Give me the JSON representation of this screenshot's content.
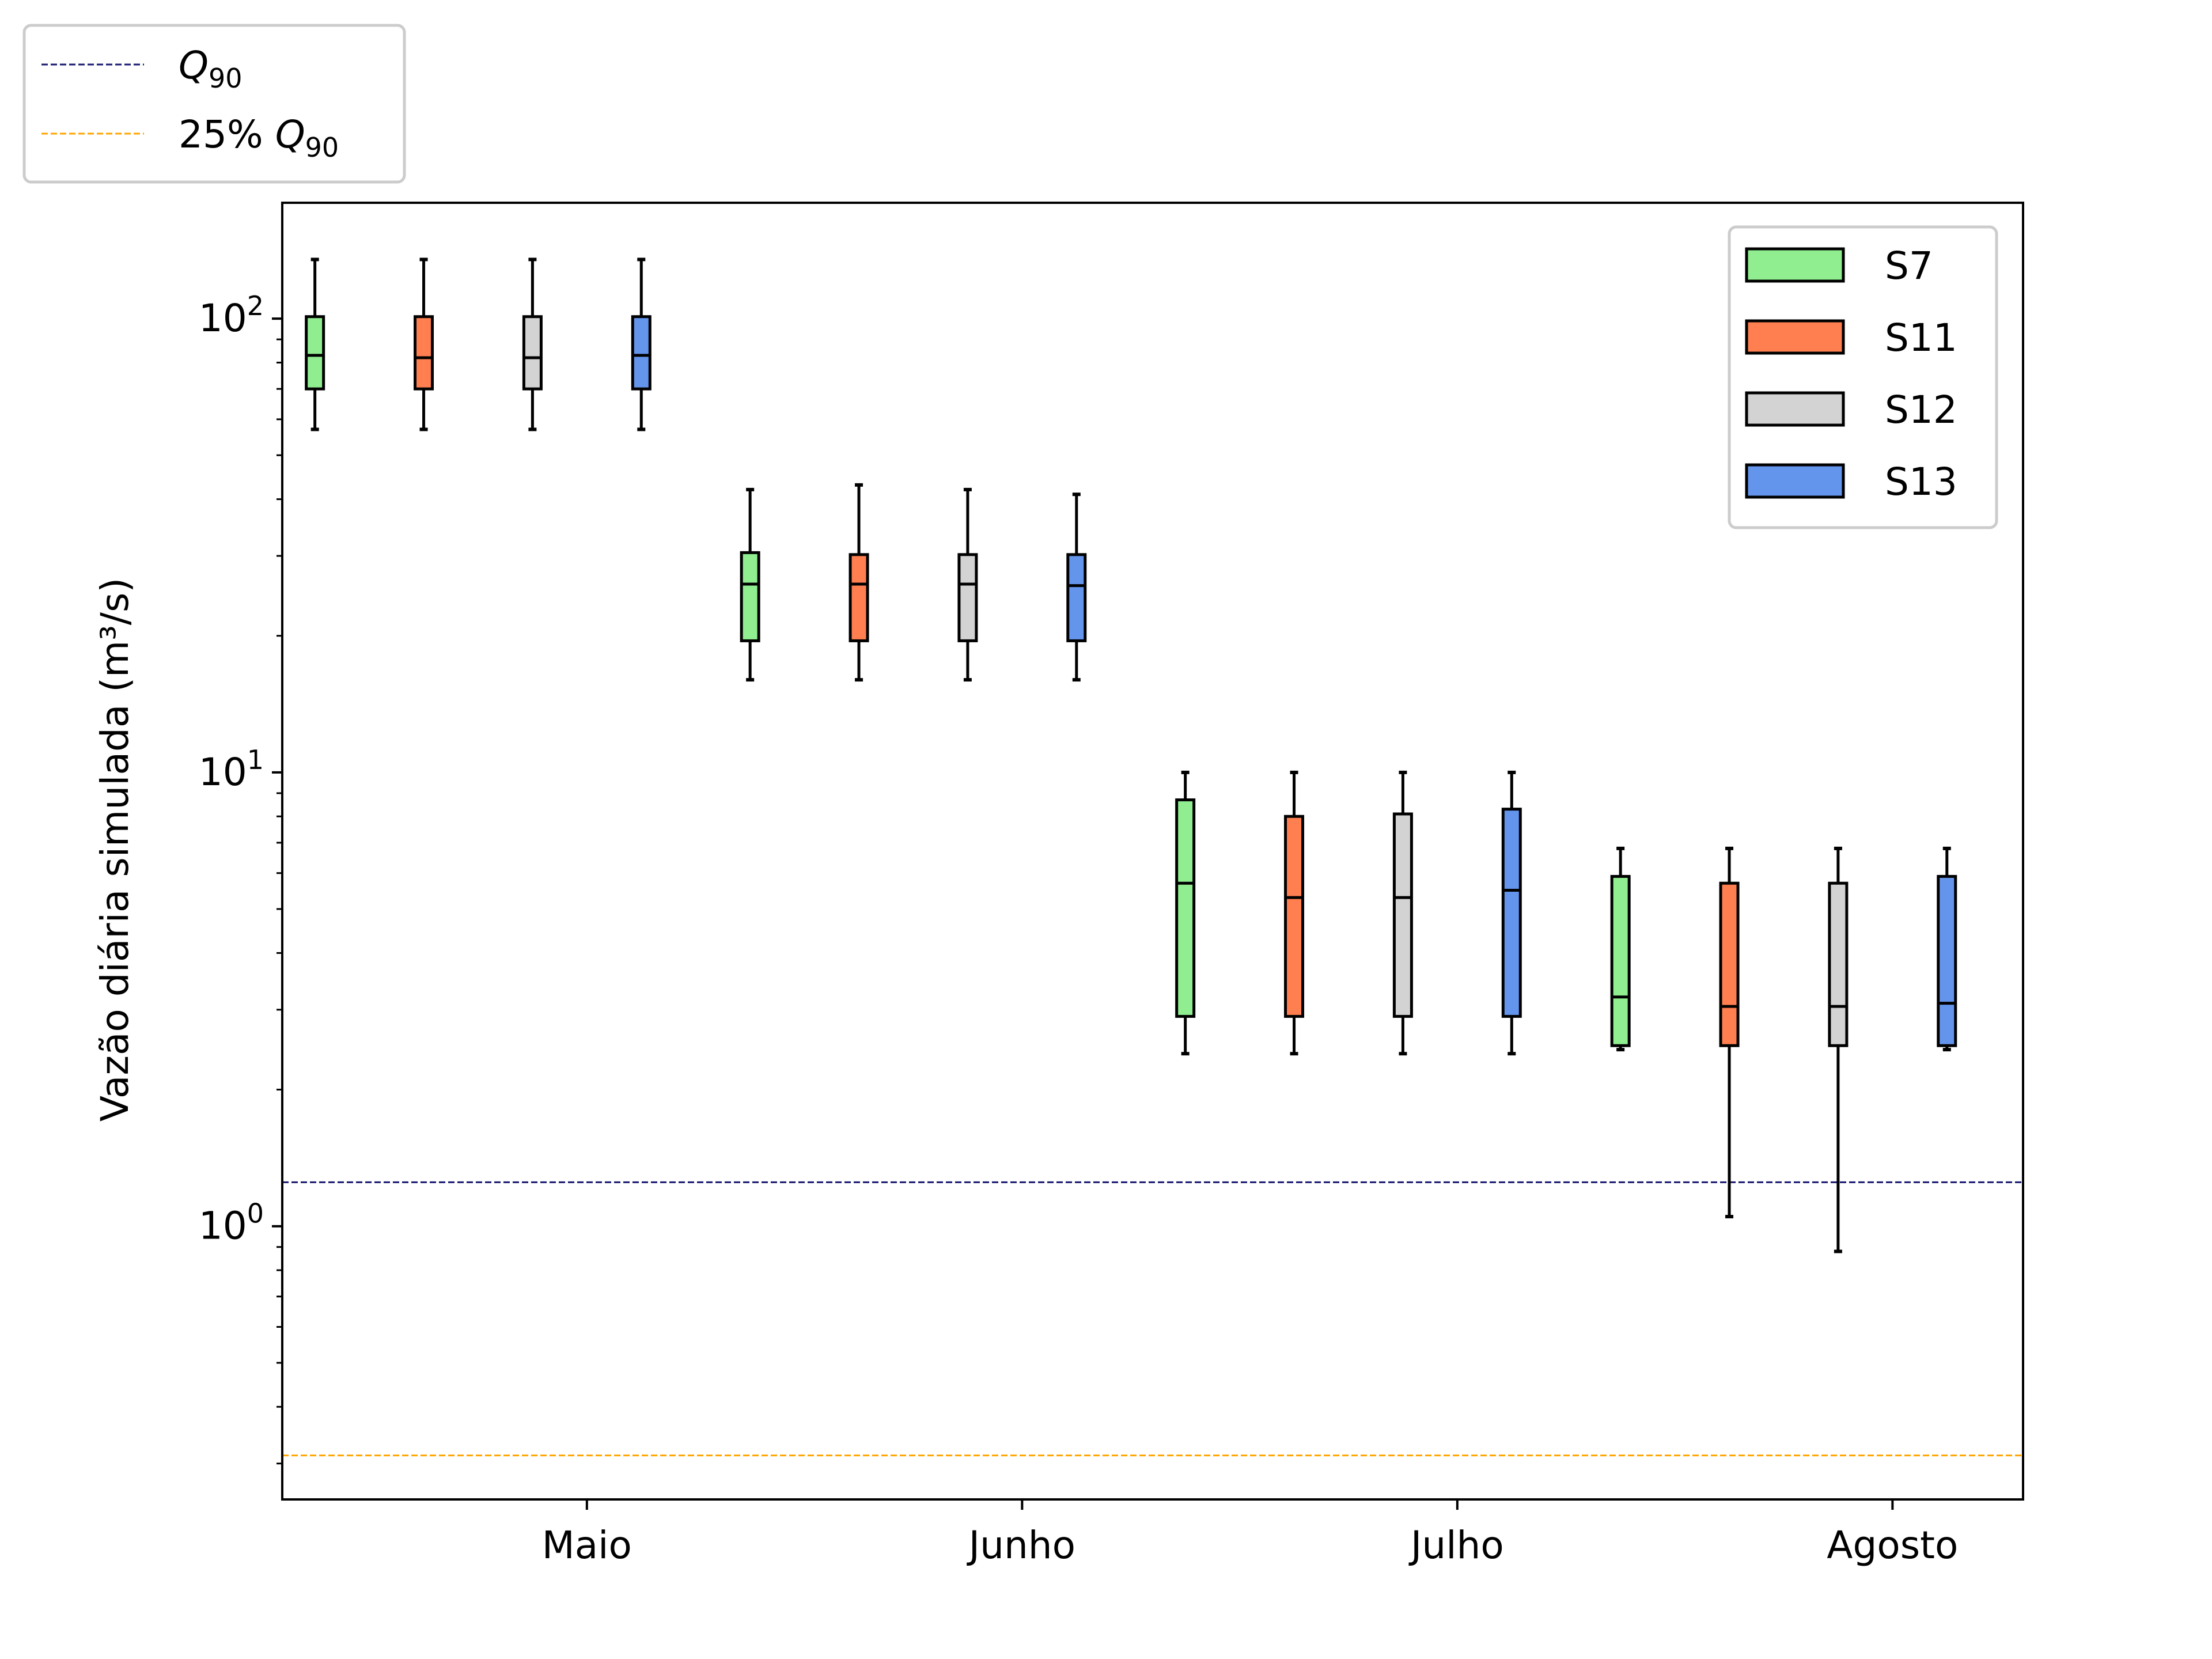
{
  "chart_data": {
    "type": "box",
    "ylabel": "Vazão diária simulada (m³/s)",
    "yscale": "log",
    "ylim": [
      0.25,
      180
    ],
    "y_ticks": [
      {
        "base": "10",
        "exp": "2",
        "value": 100
      },
      {
        "base": "10",
        "exp": "1",
        "value": 10
      },
      {
        "base": "10",
        "exp": "0",
        "value": 1
      }
    ],
    "categories": [
      "Maio",
      "Junho",
      "Julho",
      "Agosto"
    ],
    "series": [
      {
        "name": "S7",
        "color": "#90ee90"
      },
      {
        "name": "S11",
        "color": "#ff7f50"
      },
      {
        "name": "S12",
        "color": "#d3d3d3"
      },
      {
        "name": "S13",
        "color": "#6495ed"
      }
    ],
    "boxes": [
      {
        "month": "Maio",
        "series": "S7",
        "min": 57,
        "q1": 70,
        "median": 83,
        "q3": 101,
        "max": 135
      },
      {
        "month": "Maio",
        "series": "S11",
        "min": 57,
        "q1": 70,
        "median": 82,
        "q3": 101,
        "max": 135
      },
      {
        "month": "Maio",
        "series": "S12",
        "min": 57,
        "q1": 70,
        "median": 82,
        "q3": 101,
        "max": 135
      },
      {
        "month": "Maio",
        "series": "S13",
        "min": 57,
        "q1": 70,
        "median": 83,
        "q3": 101,
        "max": 135
      },
      {
        "month": "Junho",
        "series": "S7",
        "min": 16,
        "q1": 19.5,
        "median": 26,
        "q3": 30.5,
        "max": 42
      },
      {
        "month": "Junho",
        "series": "S11",
        "min": 16,
        "q1": 19.5,
        "median": 26,
        "q3": 30.2,
        "max": 43
      },
      {
        "month": "Junho",
        "series": "S12",
        "min": 16,
        "q1": 19.5,
        "median": 26,
        "q3": 30.2,
        "max": 42
      },
      {
        "month": "Junho",
        "series": "S13",
        "min": 16,
        "q1": 19.5,
        "median": 25.8,
        "q3": 30.2,
        "max": 41
      },
      {
        "month": "Julho",
        "series": "S7",
        "min": 2.4,
        "q1": 2.9,
        "median": 5.7,
        "q3": 8.7,
        "max": 10
      },
      {
        "month": "Julho",
        "series": "S11",
        "min": 2.4,
        "q1": 2.9,
        "median": 5.3,
        "q3": 8.0,
        "max": 10
      },
      {
        "month": "Julho",
        "series": "S12",
        "min": 2.4,
        "q1": 2.9,
        "median": 5.3,
        "q3": 8.1,
        "max": 10
      },
      {
        "month": "Julho",
        "series": "S13",
        "min": 2.4,
        "q1": 2.9,
        "median": 5.5,
        "q3": 8.3,
        "max": 10
      },
      {
        "month": "Agosto",
        "series": "S7",
        "min": 2.45,
        "q1": 2.5,
        "median": 3.2,
        "q3": 5.9,
        "max": 6.8
      },
      {
        "month": "Agosto",
        "series": "S11",
        "min": 1.05,
        "q1": 2.5,
        "median": 3.05,
        "q3": 5.7,
        "max": 6.8
      },
      {
        "month": "Agosto",
        "series": "S12",
        "min": 0.88,
        "q1": 2.5,
        "median": 3.05,
        "q3": 5.7,
        "max": 6.8
      },
      {
        "month": "Agosto",
        "series": "S13",
        "min": 2.45,
        "q1": 2.5,
        "median": 3.1,
        "q3": 5.9,
        "max": 6.8
      }
    ],
    "reference_lines": [
      {
        "label": "Q90",
        "label_base": "Q",
        "label_sub": "90",
        "label_prefix": "",
        "value": 1.25,
        "color": "#191970"
      },
      {
        "label": "25% Q90",
        "label_base": "Q",
        "label_sub": "90",
        "label_prefix": "25% ",
        "value": 0.3125,
        "color": "#ffa500"
      }
    ],
    "legend_series_placement": "upper-right",
    "legend_lines_placement": "above-top-left",
    "grid": false
  }
}
